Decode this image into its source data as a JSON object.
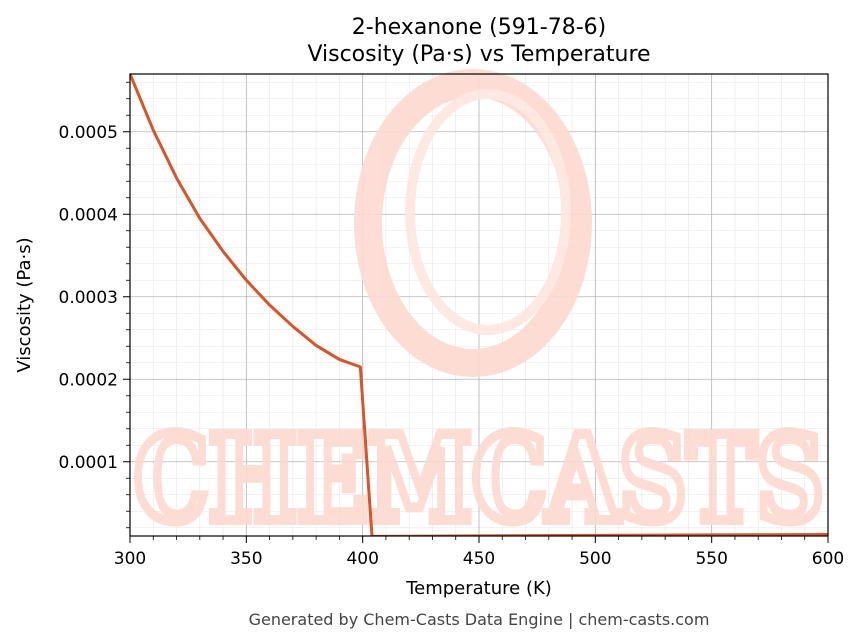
{
  "chart_data": {
    "type": "line",
    "title": "2-hexanone (591-78-6)",
    "subtitle": "Viscosity (Pa·s) vs Temperature",
    "xlabel": "Temperature (K)",
    "ylabel": "Viscosity (Pa·s)",
    "xlim": [
      300,
      600
    ],
    "ylim": [
      1e-05,
      0.00057
    ],
    "x_ticks": [
      300,
      350,
      400,
      450,
      500,
      550,
      600
    ],
    "x_tick_labels": [
      "300",
      "350",
      "400",
      "450",
      "500",
      "550",
      "600"
    ],
    "y_ticks": [
      0.0001,
      0.0002,
      0.0003,
      0.0004,
      0.0005
    ],
    "y_tick_labels": [
      "0.0001",
      "0.0002",
      "0.0003",
      "0.0004",
      "0.0005"
    ],
    "grid": true,
    "series": [
      {
        "color": "#d9542a",
        "x": [
          300,
          310,
          320,
          330,
          340,
          350,
          360,
          370,
          380,
          390,
          399,
          404,
          404.5,
          450,
          500,
          550,
          600
        ],
        "y": [
          0.00057,
          0.000502,
          0.000444,
          0.000395,
          0.000355,
          0.00032,
          0.00029,
          0.000264,
          0.000241,
          0.000224,
          0.000215,
          1e-05,
          9.5e-06,
          1.02e-05,
          1.08e-05,
          1.13e-05,
          1.18e-05
        ]
      }
    ]
  },
  "watermark": {
    "text": "CHEMCASTS",
    "color": "#fdd9d0"
  },
  "footer": {
    "text": "Generated by Chem-Casts Data Engine | chem-casts.com"
  }
}
